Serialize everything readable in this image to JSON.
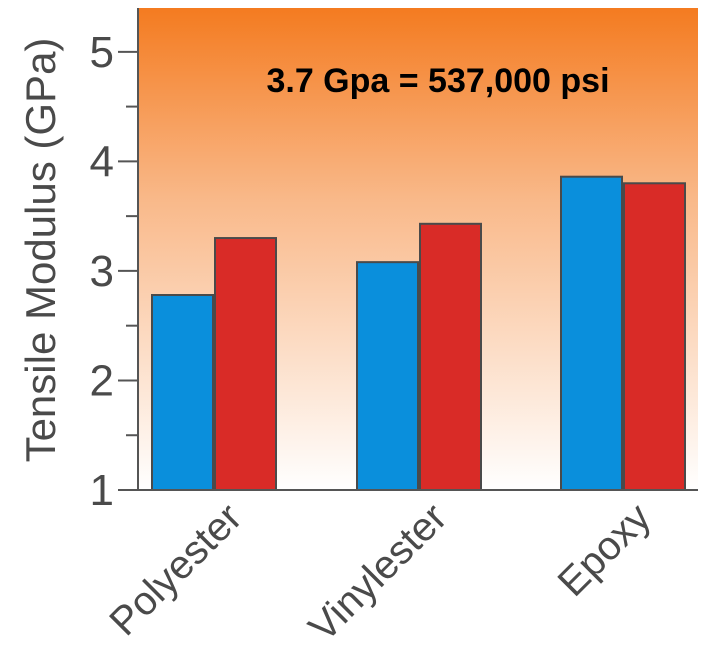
{
  "chart_data": {
    "type": "bar",
    "title": "",
    "xlabel": "",
    "ylabel": "Tensile Modulus (GPa)",
    "categories": [
      "Polyester",
      "Vinylester",
      "Epoxy"
    ],
    "series": [
      {
        "color": "#0a8fdc",
        "values": [
          2.78,
          3.08,
          3.86
        ]
      },
      {
        "color": "#d92b27",
        "values": [
          3.3,
          3.43,
          3.8
        ]
      }
    ],
    "ylim": [
      1,
      5.4
    ],
    "yticks": [
      1,
      2,
      3,
      4,
      5
    ],
    "grid": false,
    "annotation": "3.7 Gpa = 537,000 psi",
    "background_gradient": [
      "#f47b20",
      "#ffffff"
    ]
  }
}
